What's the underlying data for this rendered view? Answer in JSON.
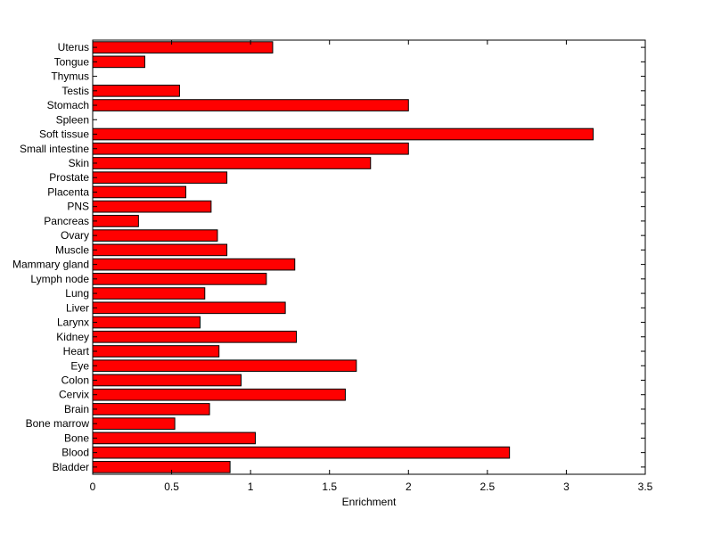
{
  "chart_data": {
    "type": "bar",
    "orientation": "horizontal",
    "title": "",
    "xlabel": "Enrichment",
    "ylabel": "",
    "xlim": [
      0,
      3.5
    ],
    "xticks": [
      0,
      0.5,
      1,
      1.5,
      2,
      2.5,
      3,
      3.5
    ],
    "grid": false,
    "legend": "none",
    "bar_color": "#ff0000",
    "categories": [
      "Bladder",
      "Blood",
      "Bone",
      "Bone marrow",
      "Brain",
      "Cervix",
      "Colon",
      "Eye",
      "Heart",
      "Kidney",
      "Larynx",
      "Liver",
      "Lung",
      "Lymph node",
      "Mammary gland",
      "Muscle",
      "Ovary",
      "Pancreas",
      "PNS",
      "Placenta",
      "Prostate",
      "Skin",
      "Small intestine",
      "Soft tissue",
      "Spleen",
      "Stomach",
      "Testis",
      "Thymus",
      "Tongue",
      "Uterus"
    ],
    "values": [
      0.87,
      2.64,
      1.03,
      0.52,
      0.74,
      1.6,
      0.94,
      1.67,
      0.8,
      1.29,
      0.68,
      1.22,
      0.71,
      1.1,
      1.28,
      0.85,
      0.79,
      0.29,
      0.75,
      0.59,
      0.85,
      1.76,
      2.0,
      3.17,
      0,
      2.0,
      0.55,
      0,
      0.33,
      1.14
    ]
  }
}
